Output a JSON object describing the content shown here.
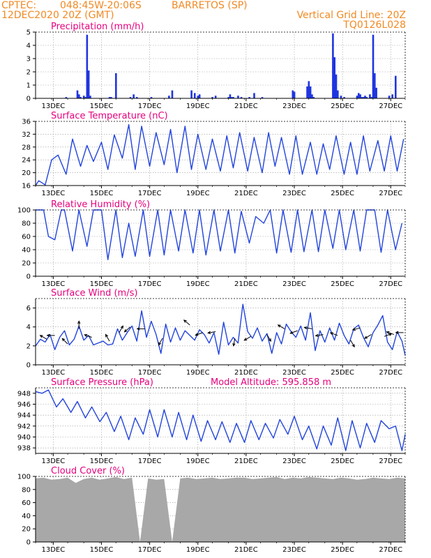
{
  "header": {
    "source": "CPTEC:",
    "coords": "048:45W-20:06S",
    "station": "BARRETOS (SP)",
    "time": "12DEC2020 20Z (GMT)",
    "grid_note": "Vertical Grid Line: 20Z",
    "code": "TQ0126L028"
  },
  "colors": {
    "header": "#f08a24",
    "panel_title": "#e6007e",
    "series_line": "#2244dd",
    "precip_bar": "#1f35e0",
    "cloud_fill": "#a8a8a8",
    "wind_arrow": "#000000",
    "grid": "#9a9a9a"
  },
  "chart_data": [
    {
      "type": "bar",
      "title": "Precipitation (mm/h)",
      "x_tick_labels": [
        "13DEC",
        "15DEC",
        "17DEC",
        "19DEC",
        "21DEC",
        "23DEC",
        "25DEC",
        "27DEC"
      ],
      "ylim": [
        0,
        5
      ],
      "yticks": [
        0,
        1,
        2,
        3,
        4,
        5
      ],
      "grid": true,
      "series": [
        {
          "x": [
            1.9,
            2.6,
            2.7,
            2.8,
            3.0,
            3.1,
            3.2,
            3.3,
            3.4,
            4.6,
            4.7,
            5.0,
            5.9,
            6.1,
            6.3,
            7.2,
            8.3,
            8.5,
            9.7,
            9.9,
            10.1,
            10.2,
            11.0,
            11.2,
            12.0,
            12.1,
            12.2,
            12.3,
            12.6,
            12.8,
            13.3,
            13.6,
            14.1,
            16.0,
            16.1,
            16.9,
            17.0,
            17.1,
            17.2,
            17.3,
            18.5,
            18.6,
            18.7,
            18.8,
            19.0,
            19.2,
            20.0,
            20.1,
            20.2,
            20.3,
            20.4,
            20.5,
            20.6,
            20.8,
            20.9,
            21.0,
            21.1,
            21.2,
            22.0,
            22.2,
            22.4
          ],
          "values": [
            0.1,
            0.6,
            0.3,
            0.1,
            0.2,
            0.1,
            4.8,
            2.1,
            0.2,
            0.1,
            0.1,
            1.9,
            0.1,
            0.3,
            0.1,
            0.1,
            0.2,
            0.6,
            0.6,
            0.4,
            0.2,
            0.3,
            0.1,
            0.2,
            0.1,
            0.3,
            0.1,
            0.1,
            0.2,
            0.1,
            0.1,
            0.4,
            0.1,
            0.6,
            0.5,
            0.9,
            1.3,
            0.9,
            0.3,
            0.1,
            4.9,
            3.1,
            1.8,
            0.6,
            0.2,
            0.1,
            0.2,
            0.4,
            0.3,
            0.1,
            0.1,
            0.2,
            0.1,
            0.3,
            0.1,
            4.8,
            1.9,
            0.8,
            0.2,
            0.3,
            1.7
          ]
        }
      ]
    },
    {
      "type": "line",
      "title": "Surface Temperature (nC)",
      "x_tick_labels": [
        "13DEC",
        "15DEC",
        "17DEC",
        "19DEC",
        "21DEC",
        "23DEC",
        "25DEC",
        "27DEC"
      ],
      "ylim": [
        16,
        36
      ],
      "yticks": [
        16,
        20,
        24,
        28,
        32,
        36
      ],
      "grid": true,
      "series": [
        {
          "x": [
            0,
            0.2,
            0.6,
            1.0,
            1.4,
            1.9,
            2.3,
            2.8,
            3.2,
            3.6,
            4.1,
            4.5,
            4.9,
            5.4,
            5.8,
            6.2,
            6.6,
            7.1,
            7.5,
            8.0,
            8.4,
            8.8,
            9.3,
            9.7,
            10.1,
            10.6,
            11.0,
            11.5,
            11.9,
            12.3,
            12.7,
            13.2,
            13.6,
            14.1,
            14.5,
            14.9,
            15.3,
            15.8,
            16.2,
            16.6,
            17.1,
            17.5,
            17.9,
            18.3,
            18.7,
            19.2,
            19.6,
            20.0,
            20.4,
            20.8,
            21.3,
            21.7,
            22.1,
            22.5,
            22.9
          ],
          "values": [
            16,
            17.5,
            16.2,
            24,
            25.5,
            19.5,
            30.5,
            22,
            28.5,
            23.5,
            29.5,
            21,
            31.8,
            24.5,
            35,
            21,
            34.5,
            22,
            32.5,
            22.5,
            33.5,
            20,
            34.5,
            21,
            32,
            21,
            30.5,
            20.5,
            31.5,
            21.5,
            32.5,
            20.5,
            31,
            20,
            32.5,
            22,
            31,
            19.5,
            31.5,
            19.5,
            29.5,
            19.5,
            29,
            21,
            31.5,
            19.5,
            29.5,
            19.5,
            31.5,
            20.5,
            30,
            20.5,
            31.5,
            20.5,
            30.5
          ]
        }
      ]
    },
    {
      "type": "line",
      "title": "Relative Humidity (%)",
      "x_tick_labels": [
        "13DEC",
        "15DEC",
        "17DEC",
        "19DEC",
        "21DEC",
        "23DEC",
        "25DEC",
        "27DEC"
      ],
      "ylim": [
        0,
        100
      ],
      "yticks": [
        0,
        20,
        40,
        60,
        80,
        100
      ],
      "grid": true,
      "series": [
        {
          "x": [
            0,
            0.5,
            0.8,
            1.2,
            1.6,
            1.8,
            2.3,
            2.7,
            3.2,
            3.6,
            4.1,
            4.5,
            5.0,
            5.4,
            5.8,
            6.2,
            6.7,
            7.1,
            7.6,
            8.0,
            8.4,
            8.9,
            9.3,
            9.8,
            10.2,
            10.6,
            11.1,
            11.5,
            12.0,
            12.4,
            12.8,
            13.3,
            13.7,
            14.2,
            14.6,
            15.0,
            15.4,
            15.9,
            16.3,
            16.7,
            17.2,
            17.6,
            18.0,
            18.5,
            18.9,
            19.3,
            19.8,
            20.2,
            20.6,
            21.1,
            21.5,
            21.9,
            22.4,
            22.8
          ],
          "values": [
            100,
            100,
            60,
            55,
            100,
            100,
            38,
            100,
            45,
            100,
            100,
            25,
            100,
            28,
            80,
            30,
            100,
            30,
            100,
            32,
            100,
            38,
            100,
            35,
            100,
            32,
            100,
            38,
            100,
            35,
            98,
            50,
            90,
            80,
            100,
            35,
            100,
            36,
            100,
            37,
            100,
            37,
            100,
            42,
            100,
            40,
            100,
            38,
            100,
            100,
            36,
            100,
            40,
            80
          ]
        }
      ]
    },
    {
      "type": "line",
      "title": "Surface Wind (m/s)",
      "x_tick_labels": [
        "13DEC",
        "15DEC",
        "17DEC",
        "19DEC",
        "21DEC",
        "23DEC",
        "25DEC",
        "27DEC"
      ],
      "ylim": [
        0,
        7
      ],
      "yticks": [
        0,
        2,
        4,
        6
      ],
      "grid": true,
      "series": [
        {
          "x": [
            0,
            0.3,
            0.6,
            0.9,
            1.2,
            1.5,
            1.8,
            2.1,
            2.4,
            2.7,
            3.0,
            3.3,
            3.6,
            3.9,
            4.2,
            4.5,
            4.8,
            5.1,
            5.4,
            5.7,
            6.0,
            6.3,
            6.6,
            6.9,
            7.2,
            7.5,
            7.8,
            8.1,
            8.4,
            8.7,
            9.0,
            9.3,
            9.6,
            9.9,
            10.2,
            10.5,
            10.8,
            11.1,
            11.4,
            11.7,
            12.0,
            12.3,
            12.6,
            12.9,
            13.2,
            13.5,
            13.8,
            14.1,
            14.4,
            14.7,
            15.0,
            15.3,
            15.6,
            15.9,
            16.2,
            16.5,
            16.8,
            17.1,
            17.4,
            17.7,
            18.0,
            18.3,
            18.6,
            18.9,
            19.2,
            19.5,
            19.8,
            20.1,
            20.4,
            20.7,
            21.0,
            21.3,
            21.6,
            21.9,
            22.2,
            22.5,
            22.8,
            23.0
          ],
          "values": [
            2,
            2.7,
            2.4,
            3.2,
            1.6,
            2.9,
            3.6,
            2.1,
            2.7,
            4.1,
            2.6,
            3.1,
            2.1,
            2.3,
            2.5,
            2.1,
            2.2,
            3.8,
            2.6,
            3.4,
            4.1,
            2.5,
            5.7,
            2.9,
            4.6,
            3.2,
            1.2,
            4.3,
            2.4,
            3.9,
            2.6,
            3.6,
            3.1,
            2.6,
            3.7,
            3.2,
            2.3,
            3.4,
            1.1,
            4.5,
            2.1,
            2.9,
            2.3,
            6.4,
            3.5,
            2.8,
            3.9,
            2.5,
            3.3,
            1.2,
            3.4,
            2.2,
            4.3,
            3.5,
            2.9,
            4.1,
            2.6,
            5.5,
            1.5,
            3.6,
            2.4,
            3.9,
            2.6,
            4.4,
            3.1,
            2.2,
            3.8,
            4.2,
            2.9,
            1.9,
            3.4,
            4.2,
            5.2,
            2.4,
            1.6,
            3.5,
            2.5,
            1.0
          ]
        }
      ],
      "arrows": [
        {
          "x": 0.7,
          "speed": 2.7,
          "dir_deg": 150
        },
        {
          "x": 1.2,
          "speed": 3.1,
          "dir_deg": 180
        },
        {
          "x": 2.0,
          "speed": 2.2,
          "dir_deg": 135
        },
        {
          "x": 2.7,
          "speed": 3.8,
          "dir_deg": 90
        },
        {
          "x": 3.5,
          "speed": 2.9,
          "dir_deg": 160
        },
        {
          "x": 4.6,
          "speed": 2.5,
          "dir_deg": 120
        },
        {
          "x": 5.2,
          "speed": 3.4,
          "dir_deg": 60
        },
        {
          "x": 5.9,
          "speed": 4.0,
          "dir_deg": 220
        },
        {
          "x": 6.8,
          "speed": 3.8,
          "dir_deg": 180
        },
        {
          "x": 7.9,
          "speed": 2.8,
          "dir_deg": 240
        },
        {
          "x": 9.6,
          "speed": 4.2,
          "dir_deg": 140
        },
        {
          "x": 10.4,
          "speed": 3.4,
          "dir_deg": 200
        },
        {
          "x": 11.2,
          "speed": 3.5,
          "dir_deg": 190
        },
        {
          "x": 12.4,
          "speed": 2.8,
          "dir_deg": 260
        },
        {
          "x": 13.4,
          "speed": 3.0,
          "dir_deg": 210
        },
        {
          "x": 14.4,
          "speed": 3.2,
          "dir_deg": 300
        },
        {
          "x": 15.5,
          "speed": 3.8,
          "dir_deg": 150
        },
        {
          "x": 16.3,
          "speed": 3.6,
          "dir_deg": 200
        },
        {
          "x": 17.2,
          "speed": 3.8,
          "dir_deg": 170
        },
        {
          "x": 17.9,
          "speed": 3.2,
          "dir_deg": 190
        },
        {
          "x": 18.8,
          "speed": 3.1,
          "dir_deg": 160
        },
        {
          "x": 19.6,
          "speed": 2.6,
          "dir_deg": 300
        },
        {
          "x": 20.2,
          "speed": 3.9,
          "dir_deg": 195
        },
        {
          "x": 20.9,
          "speed": 3.2,
          "dir_deg": 210
        },
        {
          "x": 21.7,
          "speed": 3.0,
          "dir_deg": 20
        },
        {
          "x": 22.3,
          "speed": 3.2,
          "dir_deg": 160
        },
        {
          "x": 22.9,
          "speed": 3.4,
          "dir_deg": 180
        }
      ]
    },
    {
      "type": "line",
      "title": "Surface Pressure (hPa)",
      "annotation": "Model Altitude: 595.858 m",
      "x_tick_labels": [
        "13DEC",
        "15DEC",
        "17DEC",
        "19DEC",
        "21DEC",
        "23DEC",
        "25DEC",
        "27DEC"
      ],
      "ylim": [
        937,
        949
      ],
      "yticks": [
        938,
        940,
        942,
        944,
        946,
        948
      ],
      "grid": true,
      "series": [
        {
          "x": [
            0,
            0.4,
            0.8,
            1.3,
            1.7,
            2.2,
            2.6,
            3.1,
            3.5,
            4.0,
            4.4,
            4.9,
            5.3,
            5.8,
            6.2,
            6.7,
            7.1,
            7.6,
            8.0,
            8.5,
            8.9,
            9.4,
            9.8,
            10.3,
            10.7,
            11.2,
            11.6,
            12.1,
            12.5,
            13.0,
            13.4,
            13.9,
            14.3,
            14.8,
            15.2,
            15.7,
            16.1,
            16.6,
            17.0,
            17.5,
            17.9,
            18.4,
            18.8,
            19.3,
            19.7,
            20.2,
            20.6,
            21.1,
            21.5,
            22.0,
            22.4,
            22.8,
            23.0
          ],
          "values": [
            948.3,
            948,
            948.6,
            945.5,
            947,
            944.5,
            946.5,
            943.5,
            945.5,
            942.8,
            944.5,
            941,
            943.8,
            939.5,
            943.5,
            940.5,
            945,
            940,
            945,
            940,
            944.5,
            939.5,
            944,
            939.2,
            943,
            939.5,
            942.8,
            939,
            942.5,
            939,
            943,
            939.5,
            942.5,
            939.8,
            943.2,
            940.5,
            943.8,
            939.5,
            942,
            937.8,
            942,
            938.5,
            943.5,
            937.5,
            943,
            938,
            942.5,
            939,
            943,
            941.5,
            942,
            937.5,
            940.5
          ]
        }
      ]
    },
    {
      "type": "area",
      "title": "Cloud Cover (%)",
      "x_tick_labels": [
        "13DEC",
        "15DEC",
        "17DEC",
        "19DEC",
        "21DEC",
        "23DEC",
        "25DEC",
        "27DEC"
      ],
      "ylim": [
        0,
        100
      ],
      "yticks": [
        0,
        20,
        40,
        60,
        80,
        100
      ],
      "grid": true,
      "series": [
        {
          "x": [
            0,
            0.5,
            1.0,
            1.5,
            2.0,
            2.5,
            3.0,
            3.5,
            4.0,
            4.5,
            5.0,
            5.5,
            6.0,
            6.5,
            7.0,
            7.5,
            8.0,
            8.5,
            9.0,
            9.5,
            10.0,
            10.5,
            11.0,
            11.5,
            12.0,
            12.5,
            13.0,
            13.5,
            14.0,
            14.5,
            15.0,
            15.5,
            16.0,
            16.5,
            17.0,
            17.5,
            18.0,
            18.5,
            19.0,
            19.5,
            20.0,
            20.5,
            21.0,
            21.5,
            22.0,
            22.5,
            23.0
          ],
          "values": [
            97,
            98,
            95,
            96,
            98,
            90,
            96,
            98,
            95,
            97,
            99,
            96,
            98,
            0,
            97,
            95,
            96,
            0,
            97,
            98,
            96,
            97,
            98,
            96,
            97,
            98,
            98,
            96,
            97,
            98,
            99,
            96,
            98,
            97,
            99,
            98,
            97,
            96,
            98,
            97,
            95,
            96,
            98,
            97,
            96,
            98,
            97
          ]
        }
      ]
    }
  ]
}
